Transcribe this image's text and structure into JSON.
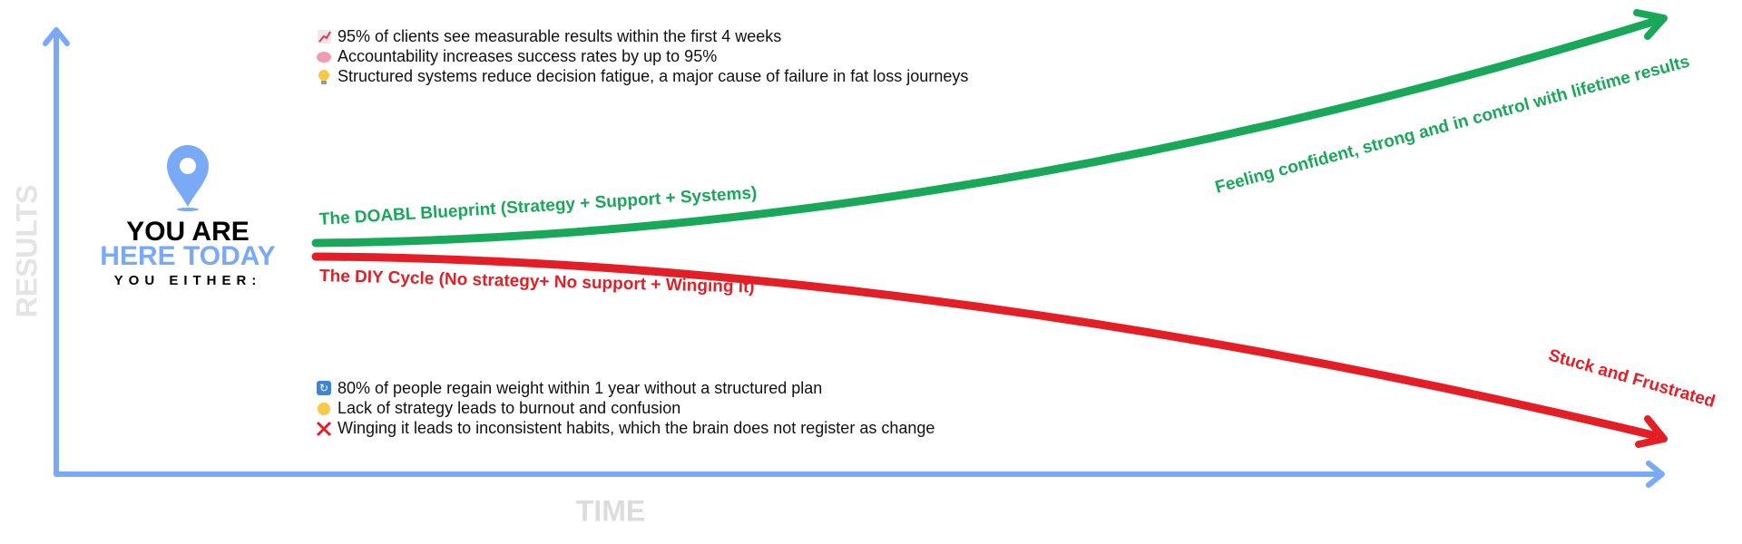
{
  "axes": {
    "y_label": "RESULTS",
    "x_label": "TIME"
  },
  "marker": {
    "line1": "YOU ARE",
    "line2": "HERE TODAY",
    "line3": "YOU EITHER:"
  },
  "paths": [
    {
      "label": "The DOABL Blueprint (Strategy + Support + Systems)",
      "outcome": "Feeling confident, strong and in control with lifetime results"
    },
    {
      "label": "The DIY Cycle (No strategy+ No support + Winging it)",
      "outcome": "Stuck and Frustrated"
    }
  ],
  "top_facts": [
    "95% of clients see measurable results within the first 4 weeks",
    "Accountability increases success rates by up to 95%",
    "Structured systems reduce decision fatigue, a major cause of failure in fat loss journeys"
  ],
  "bottom_facts": [
    "80% of people regain weight within 1 year without a structured plan",
    "Lack of strategy leads to burnout and confusion",
    "Winging it leads to inconsistent habits, which the brain does not register as change"
  ]
}
